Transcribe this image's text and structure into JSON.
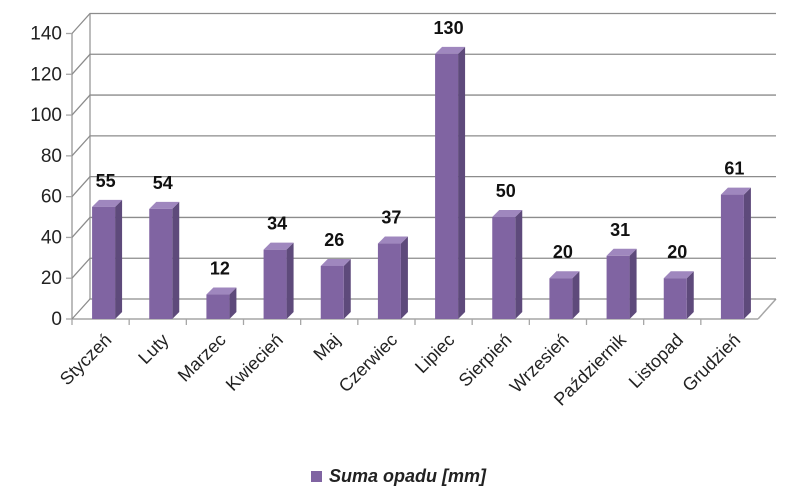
{
  "chart_data": {
    "type": "bar",
    "categories": [
      "Styczeń",
      "Luty",
      "Marzec",
      "Kwiecień",
      "Maj",
      "Czerwiec",
      "Lipiec",
      "Sierpień",
      "Wrzesień",
      "Październik",
      "Listopad",
      "Grudzień"
    ],
    "series": [
      {
        "name": "Suma opadu [mm]",
        "values": [
          55,
          54,
          12,
          34,
          26,
          37,
          130,
          50,
          20,
          31,
          20,
          61
        ]
      }
    ],
    "ylim": [
      0,
      140
    ],
    "yticks": [
      0,
      20,
      40,
      60,
      80,
      100,
      120,
      140
    ],
    "grid": true,
    "legend": "bottom",
    "three_d": true,
    "colors": {
      "bar_front": "#8064A2",
      "bar_side": "#5E4A7B",
      "bar_top": "#9F87BE",
      "grid": "#8C8C8C",
      "wall": "#A6A6A6"
    }
  }
}
